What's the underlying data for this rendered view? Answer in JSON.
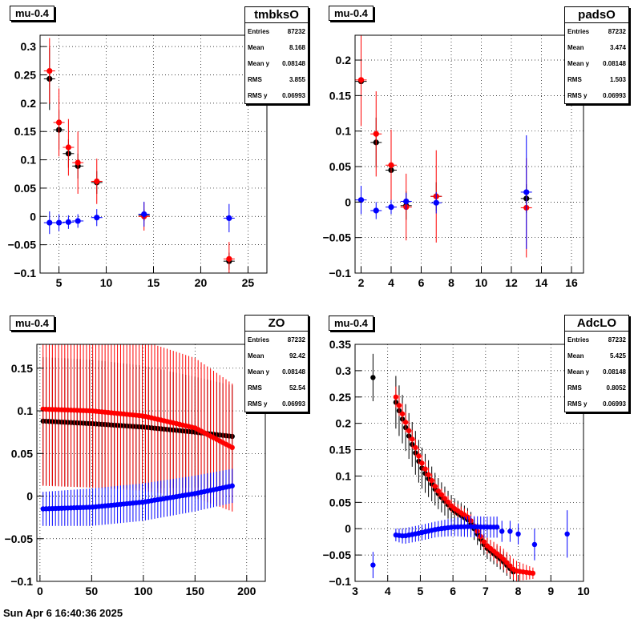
{
  "footer_text": "Sun Apr  6 16:40:36 2025",
  "colors": {
    "black": "#000000",
    "red": "#ff0000",
    "blue": "#0000ff"
  },
  "chart_data": [
    {
      "type": "scatter",
      "title": "mu-0.4",
      "stats": {
        "name": "tmbksO",
        "rows": [
          [
            "Entries",
            "87232"
          ],
          [
            "Mean",
            "8.168"
          ],
          [
            "Mean y",
            "0.08148"
          ],
          [
            "RMS",
            "3.855"
          ],
          [
            "RMS y",
            "0.06993"
          ]
        ]
      },
      "xlim": [
        3,
        27
      ],
      "ylim": [
        -0.1,
        0.32
      ],
      "xticks": [
        5,
        10,
        15,
        20,
        25
      ],
      "yticks": [
        -0.1,
        -0.05,
        0,
        0.05,
        0.1,
        0.15,
        0.2,
        0.25,
        0.3
      ],
      "xticklabels": [
        "5",
        "10",
        "15",
        "20",
        "25"
      ],
      "yticklabels": [
        "−0.1",
        "−0.05",
        "0",
        "0.05",
        "0.1",
        "0.15",
        "0.2",
        "0.25",
        "0.3"
      ],
      "series": [
        {
          "color": "black",
          "x": [
            4,
            5,
            6,
            7,
            9,
            14,
            23
          ],
          "y": [
            0.243,
            0.153,
            0.111,
            0.089,
            0.06,
            0.002,
            -0.079
          ],
          "err": [
            0.055,
            0.035,
            0.025,
            0.022,
            0.02,
            0.01,
            0.015
          ]
        },
        {
          "color": "red",
          "x": [
            4,
            5,
            6,
            7,
            9,
            14,
            23
          ],
          "y": [
            0.257,
            0.166,
            0.122,
            0.095,
            0.062,
            0.0,
            -0.075
          ],
          "err": [
            0.058,
            0.06,
            0.05,
            0.055,
            0.04,
            0.025,
            0.03
          ]
        },
        {
          "color": "blue",
          "x": [
            4,
            5,
            6,
            7,
            9,
            14,
            23
          ],
          "y": [
            -0.011,
            -0.011,
            -0.01,
            -0.008,
            -0.002,
            0.004,
            -0.003
          ],
          "err": [
            0.02,
            0.015,
            0.012,
            0.012,
            0.015,
            0.022,
            0.025
          ]
        }
      ]
    },
    {
      "type": "scatter",
      "title": "mu-0.4",
      "stats": {
        "name": "padsO",
        "rows": [
          [
            "Entries",
            "87232"
          ],
          [
            "Mean",
            "3.474"
          ],
          [
            "Mean y",
            "0.08148"
          ],
          [
            "RMS",
            "1.503"
          ],
          [
            "RMS y",
            "0.06993"
          ]
        ]
      },
      "xlim": [
        1.6,
        16.8
      ],
      "ylim": [
        -0.1,
        0.235
      ],
      "xticks": [
        2,
        4,
        6,
        8,
        10,
        12,
        14,
        16
      ],
      "yticks": [
        -0.1,
        -0.05,
        0,
        0.05,
        0.1,
        0.15,
        0.2
      ],
      "xticklabels": [
        "2",
        "4",
        "6",
        "8",
        "10",
        "12",
        "14",
        "16"
      ],
      "yticklabels": [
        "−0.1",
        "−0.05",
        "0",
        "0.05",
        "0.1",
        "0.15",
        "0.2"
      ],
      "series": [
        {
          "color": "black",
          "x": [
            2,
            3,
            4,
            5,
            7,
            13
          ],
          "y": [
            0.17,
            0.084,
            0.045,
            -0.005,
            0.008,
            0.005
          ],
          "err": [
            0.06,
            0.035,
            0.025,
            0.02,
            0.02,
            0.02
          ]
        },
        {
          "color": "red",
          "x": [
            2,
            3,
            4,
            5,
            7,
            13
          ],
          "y": [
            0.172,
            0.096,
            0.052,
            -0.007,
            0.008,
            -0.008
          ],
          "err": [
            0.065,
            0.06,
            0.05,
            0.047,
            0.065,
            0.07
          ]
        },
        {
          "color": "blue",
          "x": [
            2,
            3,
            4,
            5,
            7,
            13
          ],
          "y": [
            0.003,
            -0.012,
            -0.007,
            0.001,
            -0.001,
            0.014
          ],
          "err": [
            0.02,
            0.012,
            0.01,
            0.012,
            0.015,
            0.08
          ]
        }
      ]
    },
    {
      "type": "scatter",
      "title": "mu-0.4",
      "stats": {
        "name": "ZO",
        "rows": [
          [
            "Entries",
            "87232"
          ],
          [
            "Mean",
            "92.42"
          ],
          [
            "Mean y",
            "0.08148"
          ],
          [
            "RMS",
            "52.54"
          ],
          [
            "RMS y",
            "0.06993"
          ]
        ]
      },
      "xlim": [
        -3,
        218
      ],
      "ylim": [
        -0.1,
        0.178
      ],
      "xticks": [
        0,
        50,
        100,
        150,
        200
      ],
      "yticks": [
        -0.1,
        -0.05,
        0,
        0.05,
        0.1,
        0.15
      ],
      "xticklabels": [
        "0",
        "50",
        "100",
        "150",
        "200"
      ],
      "yticklabels": [
        "−0.1",
        "−0.05",
        "0",
        "0.05",
        "0.1",
        "0.15"
      ],
      "curve": {
        "x_start": 3,
        "x_end": 186,
        "n": 62
      },
      "series": [
        {
          "color": "black",
          "kx": [
            3,
            50,
            100,
            150,
            186
          ],
          "ky": [
            0.088,
            0.085,
            0.081,
            0.075,
            0.07
          ],
          "ke": [
            0.075,
            0.075,
            0.072,
            0.065,
            0.06
          ]
        },
        {
          "color": "red",
          "kx": [
            3,
            50,
            100,
            150,
            186
          ],
          "ky": [
            0.102,
            0.1,
            0.094,
            0.08,
            0.057
          ],
          "ke": [
            0.09,
            0.09,
            0.088,
            0.082,
            0.075
          ]
        },
        {
          "color": "blue",
          "kx": [
            3,
            50,
            100,
            150,
            186
          ],
          "ky": [
            -0.015,
            -0.013,
            -0.007,
            0.003,
            0.012
          ],
          "ke": [
            0.02,
            0.022,
            0.022,
            0.021,
            0.02
          ]
        }
      ]
    },
    {
      "type": "scatter",
      "title": "mu-0.4",
      "stats": {
        "name": "AdcLO",
        "rows": [
          [
            "Entries",
            "87232"
          ],
          [
            "Mean",
            "5.425"
          ],
          [
            "Mean y",
            "0.08148"
          ],
          [
            "RMS",
            "0.8052"
          ],
          [
            "RMS y",
            "0.06993"
          ]
        ]
      },
      "xlim": [
        3,
        10
      ],
      "ylim": [
        -0.1,
        0.35
      ],
      "xticks": [
        3,
        4,
        5,
        6,
        7,
        8,
        9,
        10
      ],
      "yticks": [
        -0.1,
        -0.05,
        0,
        0.05,
        0.1,
        0.15,
        0.2,
        0.25,
        0.3,
        0.35
      ],
      "xticklabels": [
        "3",
        "4",
        "5",
        "6",
        "7",
        "8",
        "9",
        "10"
      ],
      "yticklabels": [
        "−0.1",
        "−0.05",
        "0",
        "0.05",
        "0.1",
        "0.15",
        "0.2",
        "0.25",
        "0.3",
        "0.35"
      ],
      "curve": {
        "x_start": 4.25,
        "x_end": 7.95,
        "step": 0.1
      },
      "series": [
        {
          "color": "black",
          "extra_x": [
            3.55
          ],
          "extra_y": [
            0.287
          ],
          "extra_e": [
            0.045
          ],
          "kx": [
            4.25,
            4.5,
            5.0,
            5.5,
            6.0,
            6.5,
            7.0,
            7.5,
            7.9
          ],
          "ky": [
            0.24,
            0.2,
            0.12,
            0.07,
            0.035,
            0.015,
            -0.035,
            -0.06,
            -0.085
          ],
          "ke": [
            0.05,
            0.045,
            0.04,
            0.03,
            0.025,
            0.022,
            0.02,
            0.02,
            0.02
          ]
        },
        {
          "color": "red",
          "kx": [
            4.25,
            4.5,
            5.0,
            5.5,
            6.0,
            6.5,
            7.0,
            7.5,
            7.9,
            8.5
          ],
          "ky": [
            0.25,
            0.21,
            0.13,
            0.075,
            0.04,
            0.02,
            -0.03,
            -0.055,
            -0.08,
            -0.085
          ],
          "ke": [
            0.02,
            0.02,
            0.015,
            0.012,
            0.012,
            0.012,
            0.015,
            0.02,
            0.02,
            0.01
          ]
        },
        {
          "color": "blue",
          "extra_x": [
            3.55,
            7.5,
            7.75,
            8.0,
            8.5,
            9.5
          ],
          "extra_y": [
            -0.069,
            -0.005,
            -0.005,
            -0.01,
            -0.03,
            -0.01
          ],
          "extra_e": [
            0.025,
            0.02,
            0.02,
            0.02,
            0.03,
            0.045
          ],
          "kx": [
            4.25,
            4.5,
            5.0,
            5.5,
            6.0,
            6.5,
            7.0,
            7.4
          ],
          "ky": [
            -0.012,
            -0.014,
            -0.008,
            -0.001,
            0.003,
            0.004,
            0.003,
            0.003
          ],
          "ke": [
            0.012,
            0.015,
            0.015,
            0.015,
            0.017,
            0.02,
            0.02,
            0.02
          ]
        }
      ]
    }
  ]
}
